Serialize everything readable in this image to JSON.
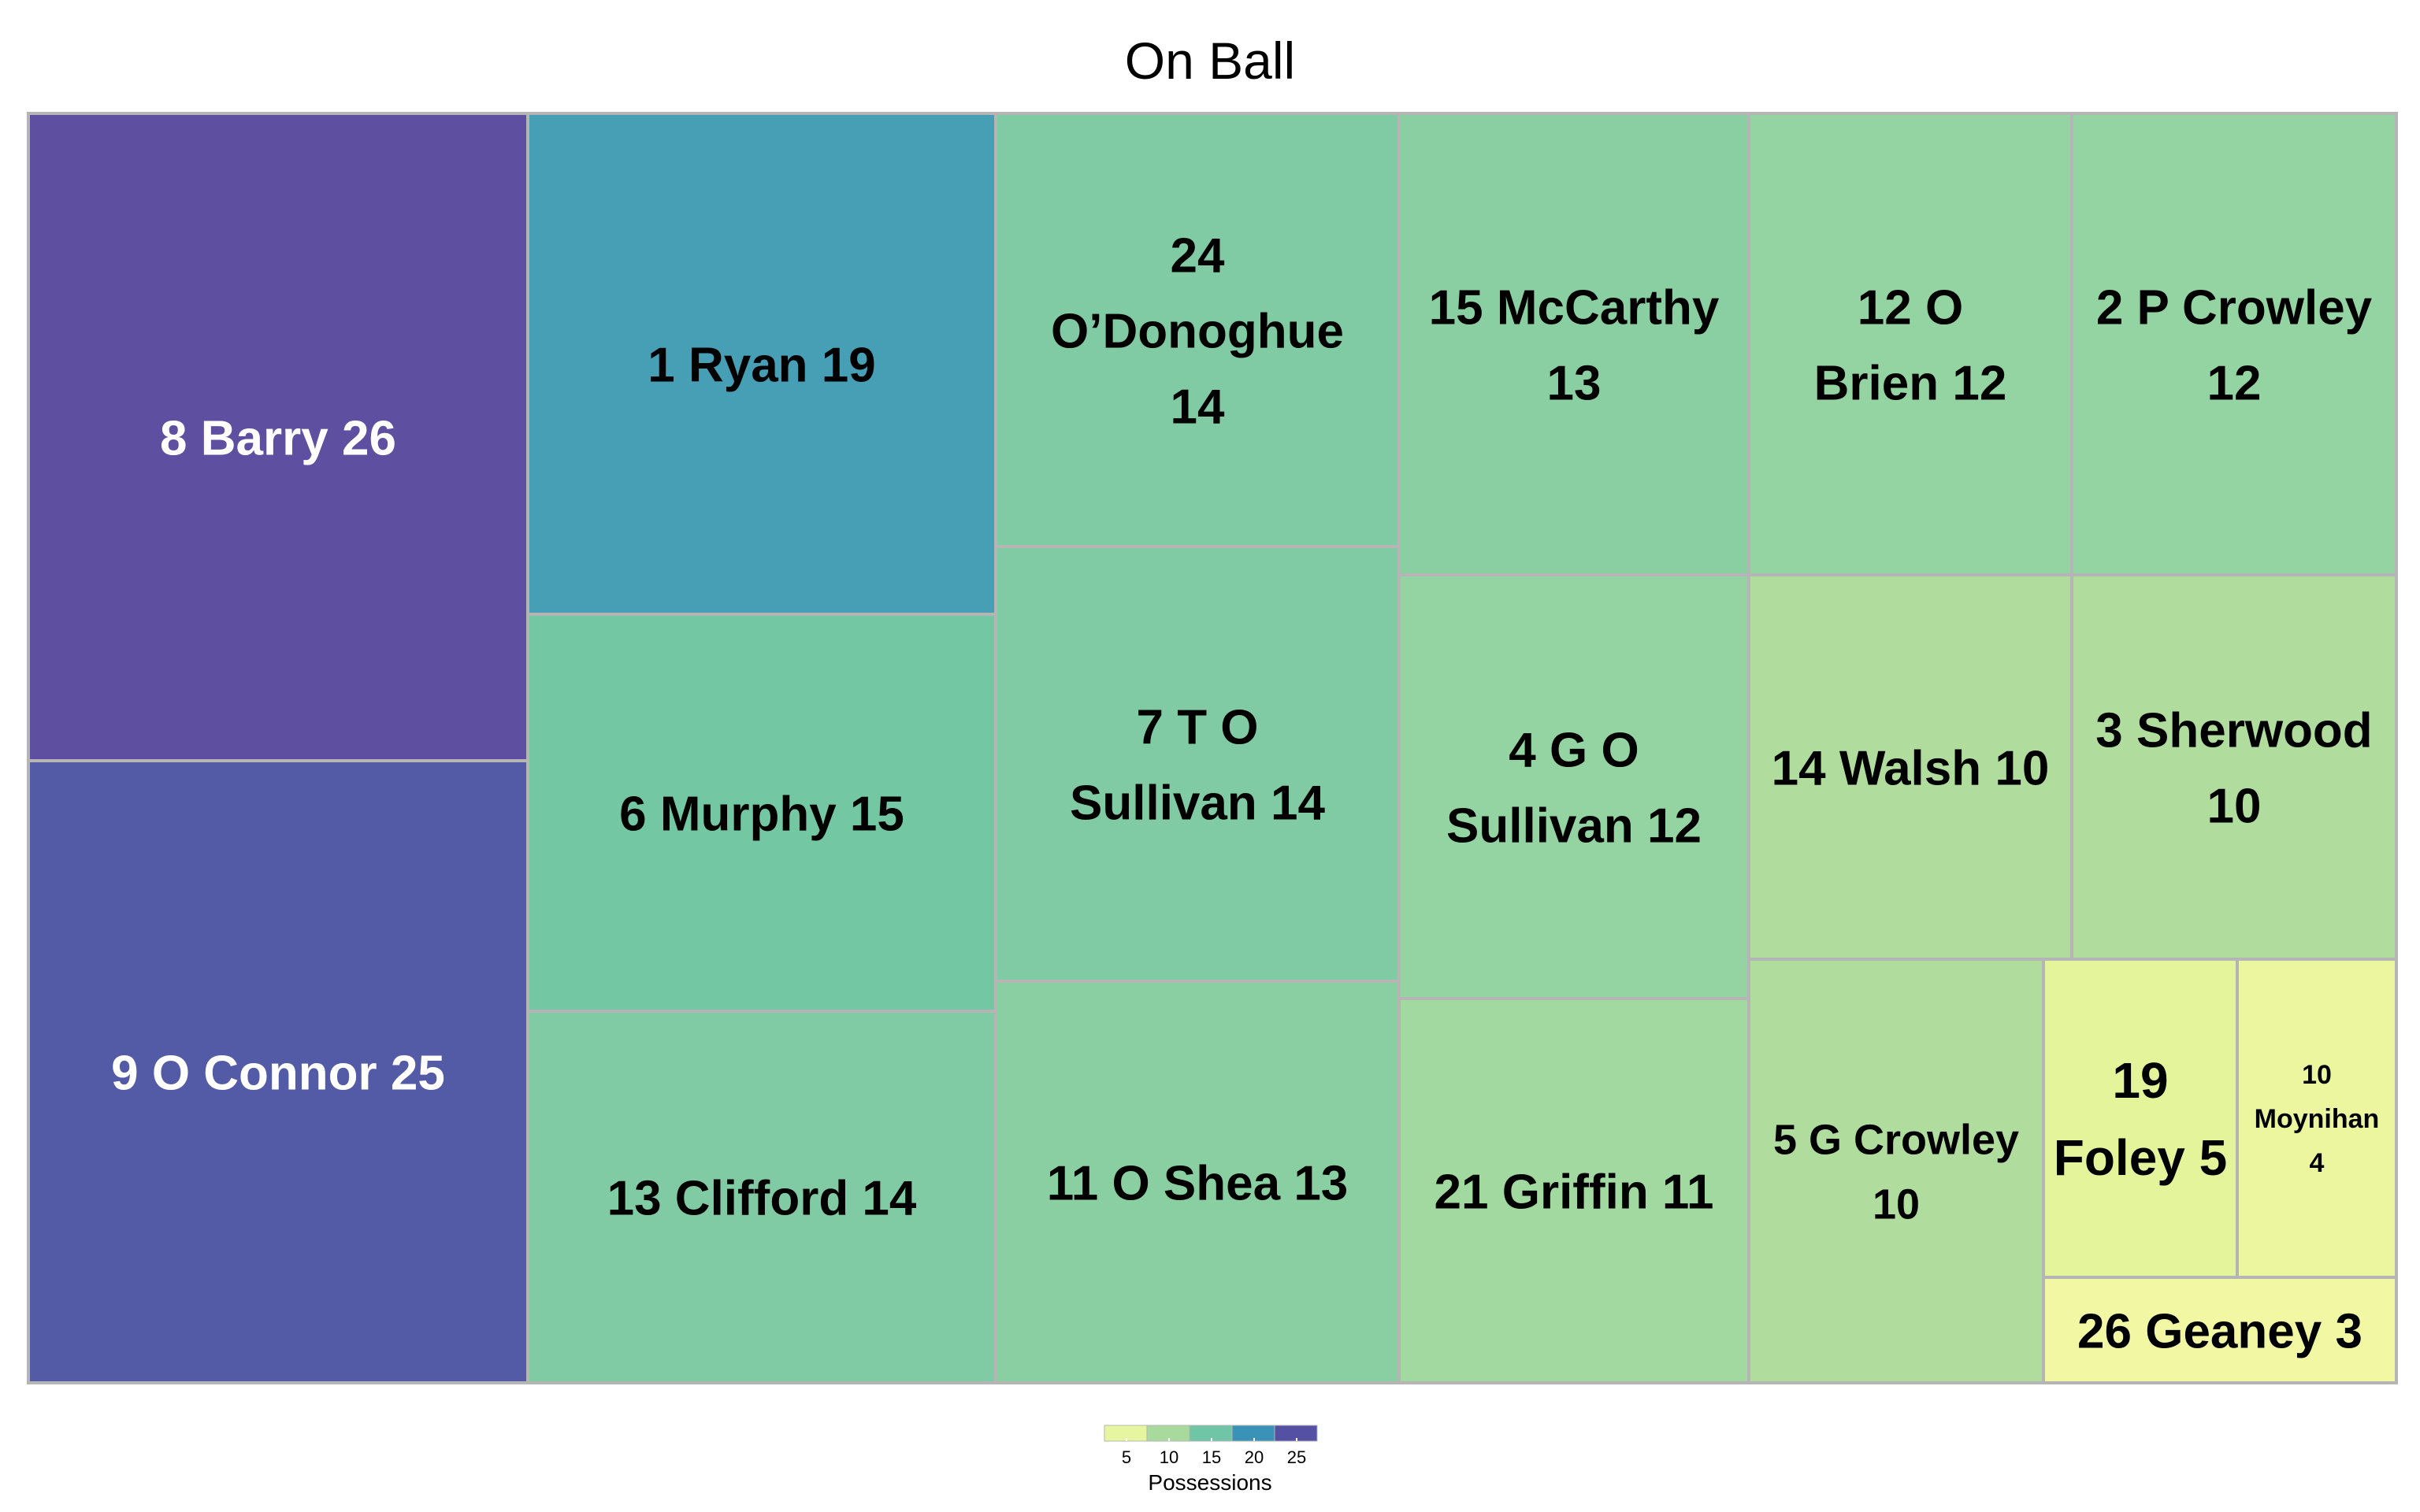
{
  "chart_data": {
    "type": "treemap",
    "title": "On Ball",
    "value_label": "Possessions",
    "color_scale": {
      "stops": [
        {
          "value": 3,
          "color": "#f2f7a4"
        },
        {
          "value": 5,
          "color": "#e4f49a"
        },
        {
          "value": 10,
          "color": "#b0dd9d"
        },
        {
          "value": 12,
          "color": "#94d4a2"
        },
        {
          "value": 13,
          "color": "#89cfa2"
        },
        {
          "value": 14,
          "color": "#81cba4"
        },
        {
          "value": 15,
          "color": "#73c7a3"
        },
        {
          "value": 19,
          "color": "#469fb5"
        },
        {
          "value": 25,
          "color": "#535ba6"
        },
        {
          "value": 26,
          "color": "#5e4fa0"
        }
      ]
    },
    "legend": {
      "ticks": [
        "5",
        "10",
        "15",
        "20",
        "25"
      ],
      "swatches": [
        "#e6f5a0",
        "#a8da9e",
        "#6fc5a5",
        "#3b92b8",
        "#5450a3"
      ]
    },
    "items": [
      {
        "label": "8 Barry 26",
        "value": 26
      },
      {
        "label": "9 O Connor 25",
        "value": 25
      },
      {
        "label": "1 Ryan 19",
        "value": 19
      },
      {
        "label": "6 Murphy 15",
        "value": 15
      },
      {
        "label": "13 Clifford 14",
        "value": 14
      },
      {
        "label": "24 O’Donoghue 14",
        "value": 14
      },
      {
        "label": "7 T O Sullivan 14",
        "value": 14
      },
      {
        "label": "11 O Shea 13",
        "value": 13
      },
      {
        "label": "15 McCarthy 13",
        "value": 13
      },
      {
        "label": "4 G O Sullivan 12",
        "value": 12
      },
      {
        "label": "21 Griffin 11",
        "value": 11
      },
      {
        "label": "12 O Brien 12",
        "value": 12
      },
      {
        "label": "2 P Crowley 12",
        "value": 12
      },
      {
        "label": "14 Walsh  10",
        "value": 10
      },
      {
        "label": "3 Sherwood 10",
        "value": 10
      },
      {
        "label": "5 G Crowley 10",
        "value": 10
      },
      {
        "label": "19 Foley 5",
        "value": 5
      },
      {
        "label": "10 Moynihan 4",
        "value": 4
      },
      {
        "label": "26 Geaney 3",
        "value": 3
      }
    ]
  }
}
